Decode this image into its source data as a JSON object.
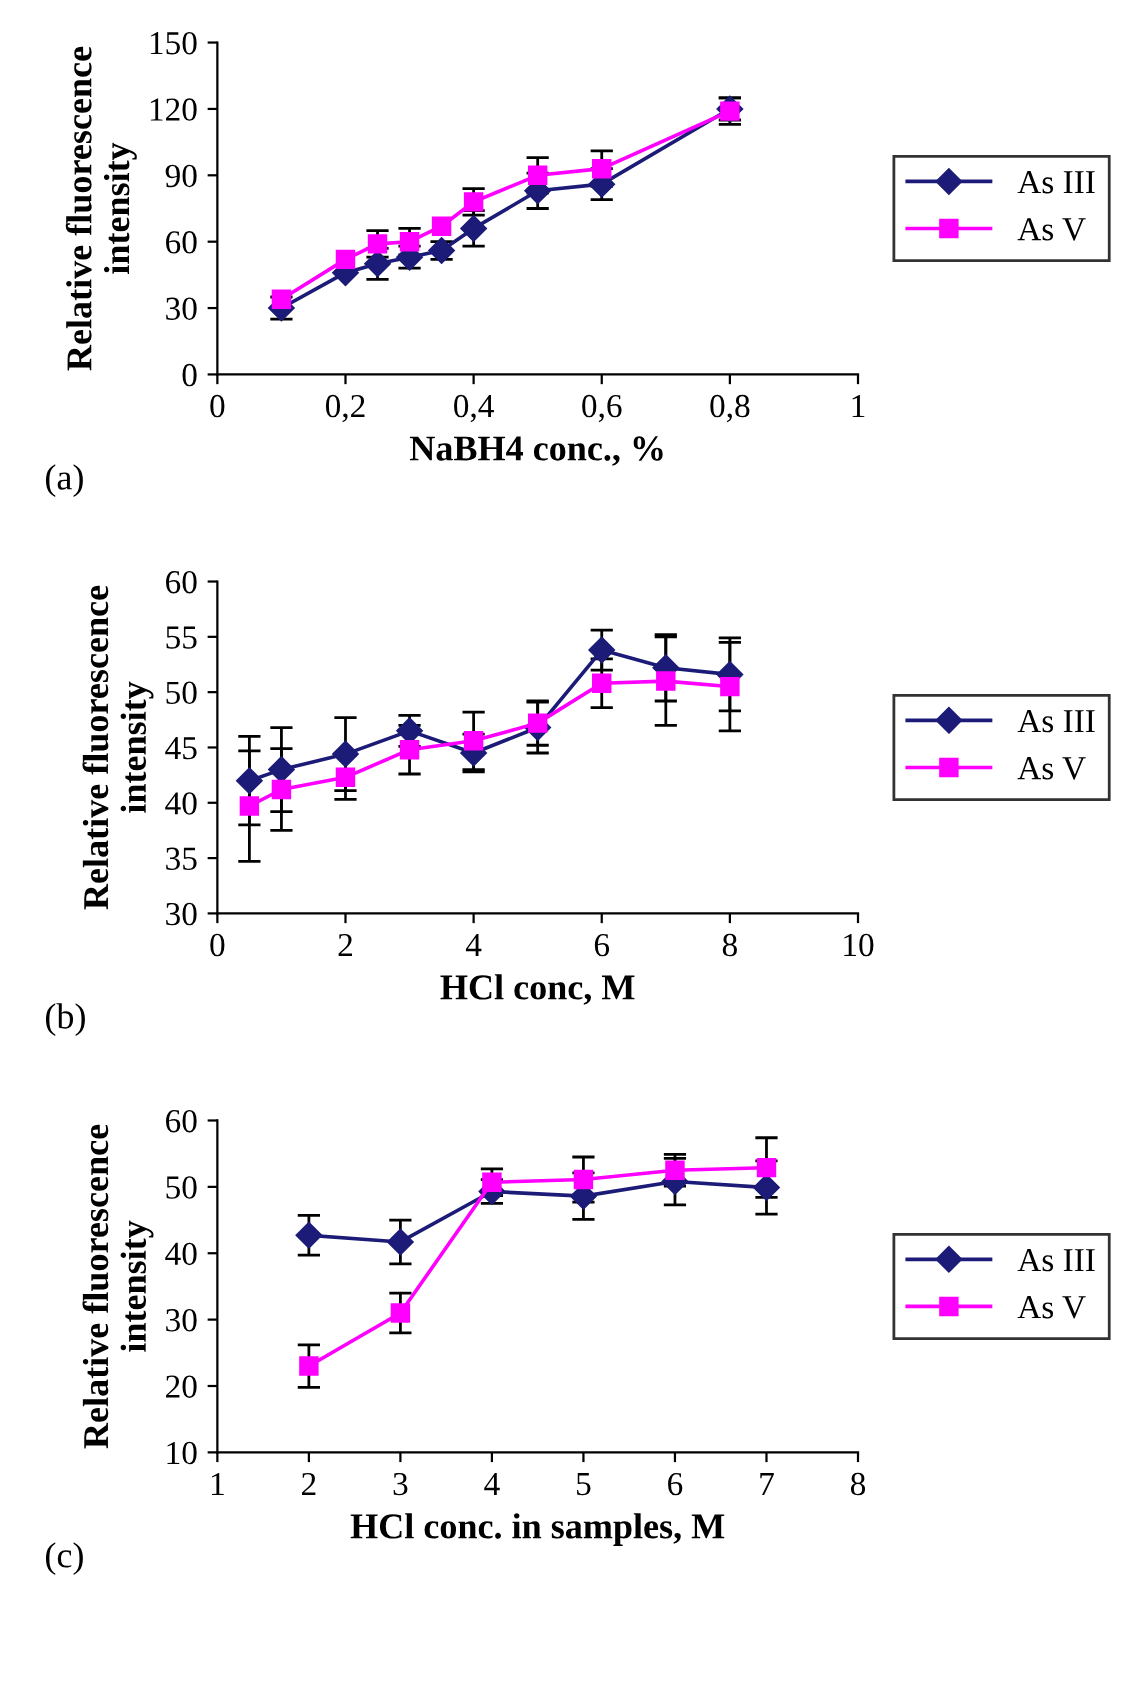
{
  "chart_data": [
    {
      "type": "line",
      "xlabel": "NaBH4 conc., %",
      "ylabel": "Relative fluorescence\nintensity",
      "annotations": [
        "(a)"
      ],
      "x": [
        0.1,
        0.2,
        0.25,
        0.3,
        0.35,
        0.4,
        0.5,
        0.6,
        0.8
      ],
      "series": [
        {
          "name": "As III",
          "color": "#1c1c78",
          "marker": "diamond",
          "values": [
            30,
            46,
            50,
            53,
            56,
            66,
            83,
            86,
            120
          ],
          "errors": [
            5,
            null,
            7,
            5,
            4,
            8,
            8,
            7,
            5
          ]
        },
        {
          "name": "As V",
          "color": "#ff00ff",
          "marker": "square",
          "values": [
            34,
            52,
            59,
            60,
            67,
            78,
            90,
            93,
            119
          ],
          "errors": [
            null,
            null,
            6,
            6,
            null,
            6,
            8,
            8,
            6
          ]
        }
      ],
      "xlim": [
        0,
        1
      ],
      "xticks": [
        0,
        {
          "value": 0.2,
          "label": "0,2"
        },
        {
          "value": 0.4,
          "label": "0,4"
        },
        {
          "value": 0.6,
          "label": "0,6"
        },
        {
          "value": 0.8,
          "label": "0,8"
        },
        1
      ],
      "ylim": [
        0,
        150
      ],
      "yticks": [
        0,
        30,
        60,
        90,
        120,
        150
      ],
      "grid": false,
      "legend": "right"
    },
    {
      "type": "line",
      "xlabel": "HCl conc, M",
      "ylabel": "Relative fluorescence\nintensity",
      "annotations": [
        "(b)"
      ],
      "x": [
        0.5,
        1,
        2,
        3,
        4,
        5,
        6,
        7,
        8
      ],
      "series": [
        {
          "name": "As III",
          "color": "#1c1c78",
          "marker": "diamond",
          "values": [
            42,
            43,
            44.4,
            46.5,
            44.5,
            46.8,
            53.8,
            52.2,
            51.6
          ],
          "errors": [
            4,
            3.8,
            3.3,
            1.4,
            1.7,
            2.3,
            1.8,
            3,
            3.3
          ]
        },
        {
          "name": "As V",
          "color": "#ff00ff",
          "marker": "square",
          "values": [
            39.7,
            41.2,
            42.3,
            44.8,
            45.6,
            47.2,
            50.8,
            51,
            50.5
          ],
          "errors": [
            5,
            3.7,
            2,
            2.2,
            2.6,
            2,
            2.2,
            4,
            4
          ]
        }
      ],
      "xlim": [
        0,
        10
      ],
      "xticks": [
        0,
        2,
        4,
        6,
        8,
        10
      ],
      "ylim": [
        30,
        60
      ],
      "yticks": [
        30,
        35,
        40,
        45,
        50,
        55,
        60
      ],
      "grid": false,
      "legend": "right"
    },
    {
      "type": "line",
      "xlabel": "HCl conc. in samples, M",
      "ylabel": "Relative fluorescence\nintensity",
      "annotations": [
        "(c)"
      ],
      "x": [
        2,
        3,
        4,
        5,
        6,
        7
      ],
      "series": [
        {
          "name": "As III",
          "color": "#1c1c78",
          "marker": "diamond",
          "values": [
            42.7,
            41.7,
            49.3,
            48.6,
            50.8,
            49.9
          ],
          "errors": [
            3,
            3.3,
            1.8,
            3.5,
            3.5,
            4
          ]
        },
        {
          "name": "As V",
          "color": "#ff00ff",
          "marker": "square",
          "values": [
            23,
            31,
            50.7,
            51.1,
            52.5,
            52.9
          ],
          "errors": [
            3.2,
            3,
            2,
            3.4,
            2.4,
            4.5
          ]
        }
      ],
      "xlim": [
        1,
        8
      ],
      "xticks": [
        1,
        2,
        3,
        4,
        5,
        6,
        7,
        8
      ],
      "ylim": [
        10,
        60
      ],
      "yticks": [
        10,
        20,
        30,
        40,
        50,
        60
      ],
      "grid": false,
      "legend": "right"
    }
  ]
}
